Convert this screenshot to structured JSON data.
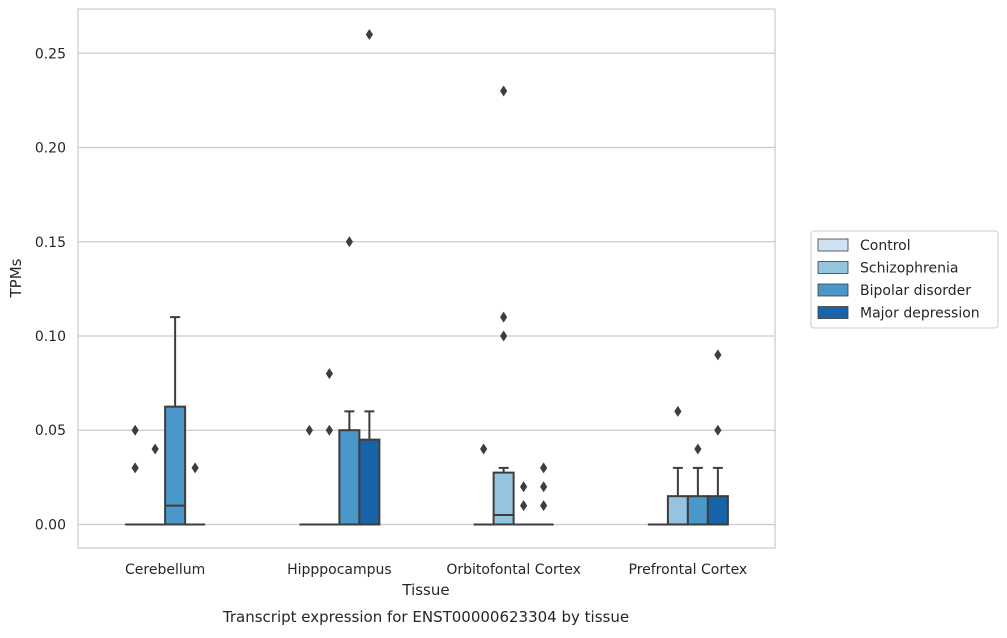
{
  "chart_data": {
    "type": "box",
    "title": "Transcript expression for ENST00000623304 by tissue",
    "xlabel": "Tissue",
    "ylabel": "TPMs",
    "ylim": [
      -0.0125,
      0.2735
    ],
    "yticks": [
      "0.00",
      "0.05",
      "0.10",
      "0.15",
      "0.20",
      "0.25"
    ],
    "ytick_values": [
      0,
      0.05,
      0.1,
      0.15,
      0.2,
      0.25
    ],
    "grid": true,
    "legend_position": "right",
    "categories": [
      "Cerebellum",
      "Hipppocampus",
      "Orbitofontal Cortex",
      "Prefrontal Cortex"
    ],
    "series": [
      {
        "name": "Control",
        "color": "#d0e1f2",
        "boxes": [
          {
            "q1": 0,
            "median": 0,
            "q3": 0,
            "whisker_low": 0,
            "whisker_high": 0,
            "outliers": [
              0.05,
              0.03
            ]
          },
          {
            "q1": 0,
            "median": 0,
            "q3": 0,
            "whisker_low": 0,
            "whisker_high": 0,
            "outliers": [
              0.05
            ]
          },
          {
            "q1": 0,
            "median": 0,
            "q3": 0,
            "whisker_low": 0,
            "whisker_high": 0,
            "outliers": [
              0.04
            ]
          },
          {
            "q1": 0,
            "median": 0,
            "q3": 0,
            "whisker_low": 0,
            "whisker_high": 0,
            "outliers": []
          }
        ]
      },
      {
        "name": "Schizophrenia",
        "color": "#94c4df",
        "boxes": [
          {
            "q1": 0,
            "median": 0,
            "q3": 0,
            "whisker_low": 0,
            "whisker_high": 0,
            "outliers": [
              0.04
            ]
          },
          {
            "q1": 0,
            "median": 0,
            "q3": 0,
            "whisker_low": 0,
            "whisker_high": 0,
            "outliers": [
              0.08,
              0.05
            ]
          },
          {
            "q1": 0,
            "median": 0.005,
            "q3": 0.0275,
            "whisker_low": 0,
            "whisker_high": 0.03,
            "outliers": [
              0.23,
              0.11,
              0.1
            ]
          },
          {
            "q1": 0,
            "median": 0,
            "q3": 0.015,
            "whisker_low": 0,
            "whisker_high": 0.03,
            "outliers": [
              0.06
            ]
          }
        ]
      },
      {
        "name": "Bipolar disorder",
        "color": "#4a98c9",
        "boxes": [
          {
            "q1": 0,
            "median": 0.01,
            "q3": 0.0625,
            "whisker_low": 0,
            "whisker_high": 0.11,
            "outliers": []
          },
          {
            "q1": 0,
            "median": 0,
            "q3": 0.05,
            "whisker_low": 0,
            "whisker_high": 0.06,
            "outliers": [
              0.15
            ]
          },
          {
            "q1": 0,
            "median": 0,
            "q3": 0,
            "whisker_low": 0,
            "whisker_high": 0,
            "outliers": [
              0.02,
              0.01
            ]
          },
          {
            "q1": 0,
            "median": 0,
            "q3": 0.015,
            "whisker_low": 0,
            "whisker_high": 0.03,
            "outliers": [
              0.04
            ]
          }
        ]
      },
      {
        "name": "Major depression",
        "color": "#1764ab",
        "boxes": [
          {
            "q1": 0,
            "median": 0,
            "q3": 0,
            "whisker_low": 0,
            "whisker_high": 0,
            "outliers": [
              0.03
            ]
          },
          {
            "q1": 0,
            "median": 0,
            "q3": 0.045,
            "whisker_low": 0,
            "whisker_high": 0.06,
            "outliers": [
              0.26
            ]
          },
          {
            "q1": 0,
            "median": 0,
            "q3": 0,
            "whisker_low": 0,
            "whisker_high": 0,
            "outliers": [
              0.03,
              0.02,
              0.01
            ]
          },
          {
            "q1": 0,
            "median": 0,
            "q3": 0.015,
            "whisker_low": 0,
            "whisker_high": 0.03,
            "outliers": [
              0.09,
              0.05
            ]
          }
        ]
      }
    ]
  }
}
